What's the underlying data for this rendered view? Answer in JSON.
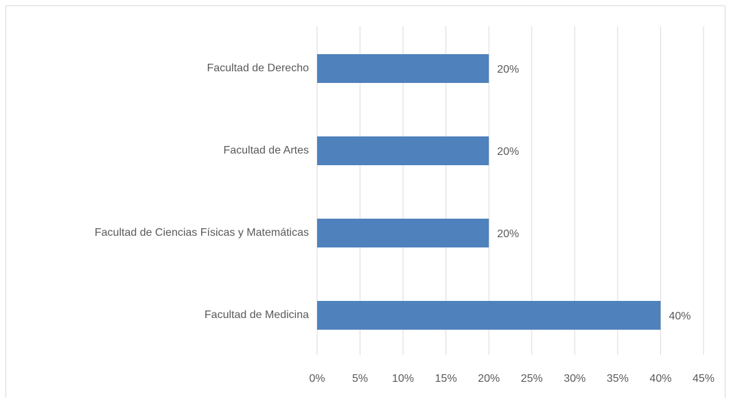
{
  "chart_data": {
    "type": "barh",
    "categories": [
      "Facultad de Derecho",
      "Facultad de Artes",
      "Facultad de Ciencias Físicas y Matemáticas",
      "Facultad de Medicina"
    ],
    "values": [
      20,
      20,
      20,
      40
    ],
    "value_labels": [
      "20%",
      "20%",
      "20%",
      "40%"
    ],
    "color": "#4f81bd",
    "xlim": [
      0,
      45
    ],
    "xticks": [
      {
        "value": 0,
        "label": "0%"
      },
      {
        "value": 5,
        "label": "5%"
      },
      {
        "value": 10,
        "label": "10%"
      },
      {
        "value": 15,
        "label": "15%"
      },
      {
        "value": 20,
        "label": "20%"
      },
      {
        "value": 25,
        "label": "25%"
      },
      {
        "value": 30,
        "label": "30%"
      },
      {
        "value": 35,
        "label": "35%"
      },
      {
        "value": 40,
        "label": "40%"
      },
      {
        "value": 45,
        "label": "45%"
      }
    ],
    "grid": true
  }
}
